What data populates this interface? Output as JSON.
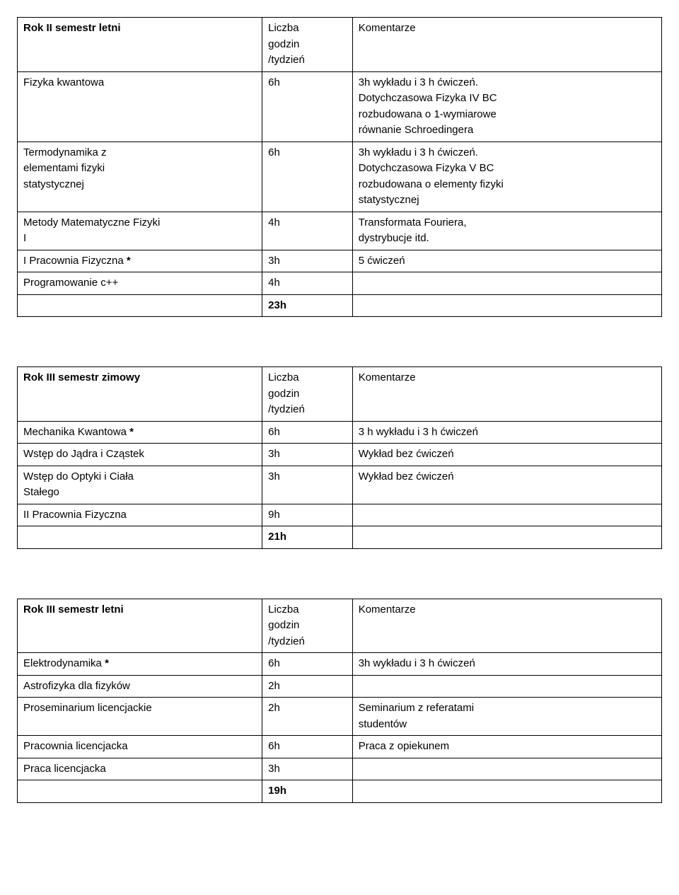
{
  "tables": [
    {
      "headerRow": {
        "c1": "Rok II semestr letni",
        "c1Bold": true,
        "c2a": "Liczba",
        "c2b": "godzin",
        "c2c": "/tydzień",
        "c3": "Komentarze"
      },
      "rows": [
        {
          "c1": "Fizyka kwantowa",
          "c2": "6h",
          "c3a": "3h wykładu i 3 h ćwiczeń.",
          "c3b": "Dotychczasowa Fizyka IV BC",
          "c3c": "rozbudowana o 1-wymiarowe",
          "c3d": "równanie Schroedingera"
        },
        {
          "c1a": "Termodynamika z",
          "c1b": "elementami fizyki",
          "c1c": "statystycznej",
          "c2": "6h",
          "c3a": "3h wykładu i 3 h ćwiczeń.",
          "c3b": "Dotychczasowa Fizyka V BC",
          "c3c": "rozbudowana o elementy fizyki",
          "c3d": "statystycznej"
        },
        {
          "c1a": "Metody Matematyczne Fizyki",
          "c1b": "I",
          "c2": "4h",
          "c3a": "Transformata Fouriera,",
          "c3b": "dystrybucje itd."
        },
        {
          "c1a": "I Pracownia Fizyczna ",
          "c1b": "*",
          "c1bBold": true,
          "c2": "3h",
          "c3": "5 ćwiczeń"
        },
        {
          "c1": "Programowanie c++",
          "c2": "4h",
          "c3": ""
        },
        {
          "c1": "",
          "c2": "23h",
          "c2Bold": true,
          "c3": ""
        }
      ]
    },
    {
      "headerRow": {
        "c1": "Rok III semestr zimowy",
        "c1Bold": true,
        "c2a": "Liczba",
        "c2b": "godzin",
        "c2c": "/tydzień",
        "c3": "Komentarze"
      },
      "rows": [
        {
          "c1a": "Mechanika Kwantowa ",
          "c1b": "*",
          "c1bBold": true,
          "c2": "6h",
          "c3": "3 h wykładu i 3 h ćwiczeń"
        },
        {
          "c1": "Wstęp do Jądra i Cząstek",
          "c2": "3h",
          "c3": "Wykład bez ćwiczeń"
        },
        {
          "c1a": "Wstęp do Optyki i Ciała",
          "c1b": "Stałego",
          "c2": "3h",
          "c3": "Wykład bez ćwiczeń"
        },
        {
          "c1": "II Pracownia Fizyczna",
          "c2": "9h",
          "c3": ""
        },
        {
          "c1": "",
          "c2": "21h",
          "c2Bold": true,
          "c3": ""
        }
      ]
    },
    {
      "headerRow": {
        "c1": "Rok III semestr letni",
        "c1Bold": true,
        "c2a": "Liczba",
        "c2b": "godzin",
        "c2c": "/tydzień",
        "c3": "Komentarze"
      },
      "rows": [
        {
          "c1a": "Elektrodynamika ",
          "c1b": "*",
          "c1bBold": true,
          "c2": "6h",
          "c3": "3h wykładu i 3 h ćwiczeń"
        },
        {
          "c1": "Astrofizyka dla fizyków",
          "c2": "2h",
          "c3": ""
        },
        {
          "c1": "Proseminarium licencjackie",
          "c2": "2h",
          "c3a": "Seminarium z referatami",
          "c3b": "studentów"
        },
        {
          "c1": "Pracownia licencjacka",
          "c2": "6h",
          "c3": "Praca z opiekunem"
        },
        {
          "c1": "Praca licencjacka",
          "c2": "3h",
          "c3": ""
        },
        {
          "c1": "",
          "c2": "19h",
          "c2Bold": true,
          "c3": ""
        }
      ]
    }
  ]
}
